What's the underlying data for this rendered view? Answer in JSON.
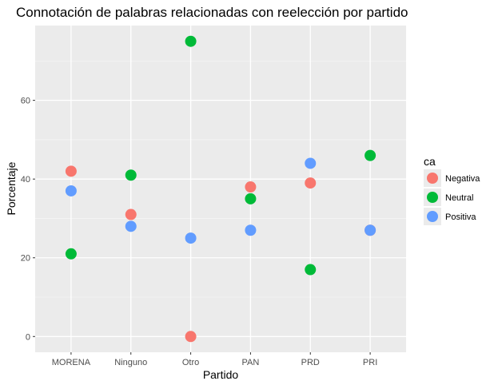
{
  "chart_data": {
    "type": "scatter",
    "title": "Connotación de palabras relacionadas con reelección por partido",
    "xlabel": "Partido",
    "ylabel": "Porcentaje",
    "categories": [
      "MORENA",
      "Ninguno",
      "Otro",
      "PAN",
      "PRD",
      "PRI"
    ],
    "ylim": [
      -4,
      79
    ],
    "yticks": [
      0,
      20,
      40,
      60
    ],
    "grid": true,
    "legend": {
      "title": "ca",
      "placement": "right"
    },
    "series": [
      {
        "name": "Negativa",
        "color": "#F8766D",
        "values": [
          42,
          31,
          0,
          38,
          39,
          27
        ]
      },
      {
        "name": "Neutral",
        "color": "#00BA38",
        "values": [
          21,
          41,
          75,
          35,
          17,
          46
        ]
      },
      {
        "name": "Positiva",
        "color": "#619CFF",
        "values": [
          37,
          28,
          25,
          27,
          44,
          27
        ]
      }
    ]
  }
}
